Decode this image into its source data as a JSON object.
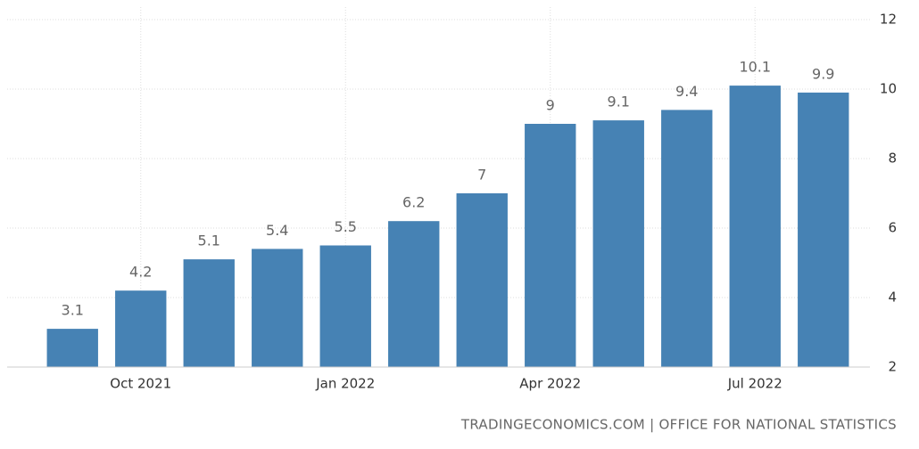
{
  "chart_data": {
    "type": "bar",
    "categories": [
      null,
      "Oct 2021",
      null,
      null,
      "Jan 2022",
      null,
      null,
      "Apr 2022",
      null,
      null,
      "Jul 2022",
      null
    ],
    "values": [
      3.1,
      4.2,
      5.1,
      5.4,
      5.5,
      6.2,
      7,
      9,
      9.1,
      9.4,
      10.1,
      9.9
    ],
    "color": "#4682b4",
    "ylim": [
      2,
      12
    ],
    "yticks": [
      2,
      4,
      6,
      8,
      10,
      12
    ],
    "grid": true,
    "y_axis_side": "right",
    "source": "TRADINGECONOMICS.COM | OFFICE FOR NATIONAL STATISTICS"
  }
}
